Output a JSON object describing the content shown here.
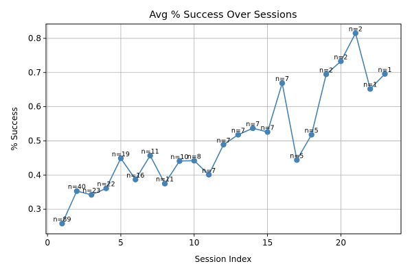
{
  "chart_data": {
    "type": "line",
    "title": "Avg % Success Over Sessions",
    "xlabel": "Session Index",
    "ylabel": "% Success",
    "xlim": [
      -0.1,
      24.1
    ],
    "ylim": [
      0.228,
      0.842
    ],
    "grid": true,
    "xticks": [
      0,
      5,
      10,
      15,
      20
    ],
    "yticks": [
      0.3,
      0.4,
      0.5,
      0.6,
      0.7,
      0.8
    ],
    "xtick_labels": [
      "0",
      "5",
      "10",
      "15",
      "20"
    ],
    "ytick_labels": [
      "0.3",
      "0.4",
      "0.5",
      "0.6",
      "0.7",
      "0.8"
    ],
    "series": [
      {
        "color": "#4682b4",
        "x": [
          1,
          2,
          3,
          4,
          5,
          6,
          7,
          8,
          9,
          10,
          11,
          12,
          13,
          14,
          15,
          16,
          17,
          18,
          19,
          20,
          21,
          22,
          23
        ],
        "y": [
          0.258,
          0.353,
          0.342,
          0.361,
          0.449,
          0.387,
          0.457,
          0.375,
          0.441,
          0.442,
          0.401,
          0.489,
          0.518,
          0.537,
          0.526,
          0.669,
          0.444,
          0.518,
          0.695,
          0.733,
          0.815,
          0.652,
          0.696
        ],
        "labels": [
          "n=89",
          "n=40",
          "n=23",
          "n=22",
          "n=19",
          "n=16",
          "n=11",
          "n=11",
          "n=10",
          "n=8",
          "n=7",
          "n=7",
          "n=7",
          "n=7",
          "n=7",
          "n=7",
          "n=5",
          "n=5",
          "n=2",
          "n=2",
          "n=2",
          "n=1",
          "n=1"
        ]
      }
    ]
  }
}
